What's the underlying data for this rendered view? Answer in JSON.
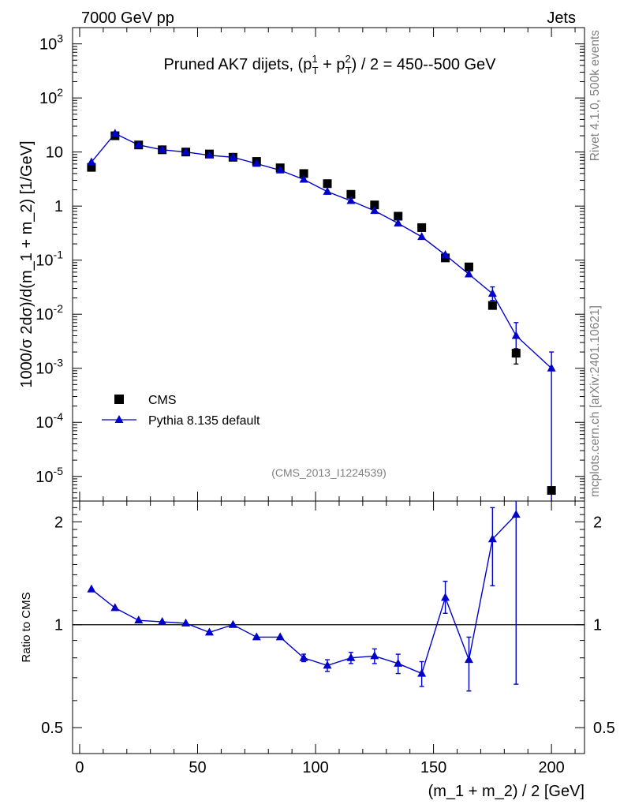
{
  "header": {
    "left": "7000 GeV pp",
    "right": "Jets",
    "side_rivet": "Rivet 4.1.0,  500k events",
    "side_mcplots": "mcplots.cern.ch [arXiv:2401.10621]",
    "analysis_id": "(CMS_2013_I1224539)"
  },
  "colors": {
    "mc": "#0000cc",
    "data": "#000000",
    "side_text": "#808080"
  },
  "chart_data": [
    {
      "type": "scatter",
      "panel": "main",
      "title": "Pruned AK7 dijets, (p_T^1 + p_T^2) / 2 = 450--500 GeV",
      "title_parts": {
        "pre": "Pruned AK7 dijets, (p",
        "sub_t": "T",
        "sup_1": "1",
        "plus": " + p",
        "sup_2": "2",
        "post": ") / 2 = 450--500 GeV"
      },
      "ylabel": "1000/σ   2dσ)/d(m_1 + m_2) [1/GeV]",
      "xlabel": "",
      "yscale": "log",
      "ylim": [
        3.5e-06,
        2000
      ],
      "xlim": [
        -3,
        214
      ],
      "ytick_labels": [
        {
          "value": 1000,
          "base": "10",
          "exp": "3"
        },
        {
          "value": 100,
          "base": "10",
          "exp": "2"
        },
        {
          "value": 10,
          "base": "10",
          "exp": ""
        },
        {
          "value": 1,
          "base": "1",
          "exp": ""
        },
        {
          "value": 0.1,
          "base": "10",
          "exp": "-1"
        },
        {
          "value": 0.01,
          "base": "10",
          "exp": "-2"
        },
        {
          "value": 0.001,
          "base": "10",
          "exp": "-3"
        },
        {
          "value": 0.0001,
          "base": "10",
          "exp": "-4"
        },
        {
          "value": 1e-05,
          "base": "10",
          "exp": "-5"
        }
      ],
      "legend": {
        "placement": "lower-left",
        "entries": [
          "CMS",
          "Pythia 8.135 default"
        ]
      },
      "series": [
        {
          "name": "CMS",
          "marker": "square",
          "x": [
            5,
            15,
            25,
            35,
            45,
            55,
            65,
            75,
            85,
            95,
            105,
            115,
            125,
            135,
            145,
            155,
            165,
            175,
            185,
            200
          ],
          "values": [
            5.2,
            20,
            13.5,
            11,
            10,
            9.2,
            8,
            6.7,
            5.1,
            4.0,
            2.6,
            1.65,
            1.05,
            0.65,
            0.4,
            0.11,
            0.075,
            0.0145,
            0.0019,
            5.5e-06
          ],
          "yerr_low": [
            0,
            0,
            0,
            0,
            0,
            0,
            0,
            0,
            0,
            0,
            0,
            0,
            0,
            0,
            0,
            0,
            0,
            0,
            0.0007,
            0
          ],
          "yerr_high": [
            0,
            0,
            0,
            0,
            0,
            0,
            0,
            0,
            0,
            0,
            0,
            0,
            0,
            0,
            0,
            0,
            0,
            0,
            0.0004,
            0
          ]
        },
        {
          "name": "Pythia 8.135 default",
          "marker": "triangle",
          "x": [
            5,
            15,
            25,
            35,
            45,
            55,
            65,
            75,
            85,
            95,
            105,
            115,
            125,
            135,
            145,
            155,
            165,
            175,
            185,
            200
          ],
          "values": [
            6.5,
            22,
            13.5,
            11,
            10,
            8.7,
            8,
            6.1,
            4.6,
            3.1,
            1.85,
            1.25,
            0.82,
            0.48,
            0.27,
            0.125,
            0.055,
            0.024,
            0.004,
            0.001
          ],
          "yerr_low": [
            0,
            0,
            0,
            0,
            0,
            0,
            0,
            0,
            0,
            0,
            0,
            0,
            0,
            0,
            0,
            0,
            0,
            0.006,
            0.0018,
            0.000997
          ],
          "yerr_high": [
            0,
            0,
            0,
            0,
            0,
            0,
            0,
            0,
            0,
            0,
            0,
            0,
            0,
            0,
            0,
            0,
            0.008,
            0.008,
            0.003,
            0.001
          ]
        }
      ]
    },
    {
      "type": "line",
      "panel": "ratio",
      "ylabel": "Ratio to CMS",
      "xlabel": "(m_1 + m_2) / 2 [GeV]",
      "yscale": "log",
      "ylim": [
        0.42,
        2.3
      ],
      "xlim": [
        -3,
        214
      ],
      "yticks": [
        0.5,
        1,
        2
      ],
      "ytick_labels": [
        "0.5",
        "1",
        "2"
      ],
      "xticks": [
        0,
        50,
        100,
        150,
        200
      ],
      "xtick_labels": [
        "0",
        "50",
        "100",
        "150",
        "200"
      ],
      "reference_line": 1,
      "series": [
        {
          "name": "Pythia 8.135 default",
          "x": [
            5,
            15,
            25,
            35,
            45,
            55,
            65,
            75,
            85,
            95,
            105,
            115,
            125,
            135,
            145,
            155,
            165,
            175,
            185
          ],
          "values": [
            1.27,
            1.12,
            1.03,
            1.02,
            1.01,
            0.95,
            1.0,
            0.92,
            0.92,
            0.8,
            0.76,
            0.8,
            0.81,
            0.77,
            0.72,
            1.2,
            0.79,
            1.78,
            2.1
          ],
          "yerr_low": [
            0,
            0,
            0,
            0,
            0,
            0,
            0,
            0,
            0,
            0.02,
            0.03,
            0.03,
            0.04,
            0.05,
            0.06,
            0.12,
            0.15,
            0.48,
            1.43
          ],
          "yerr_high": [
            0,
            0,
            0,
            0,
            0,
            0,
            0,
            0,
            0,
            0.02,
            0.03,
            0.03,
            0.04,
            0.05,
            0.06,
            0.14,
            0.13,
            0.42,
            0.5
          ]
        }
      ]
    }
  ]
}
